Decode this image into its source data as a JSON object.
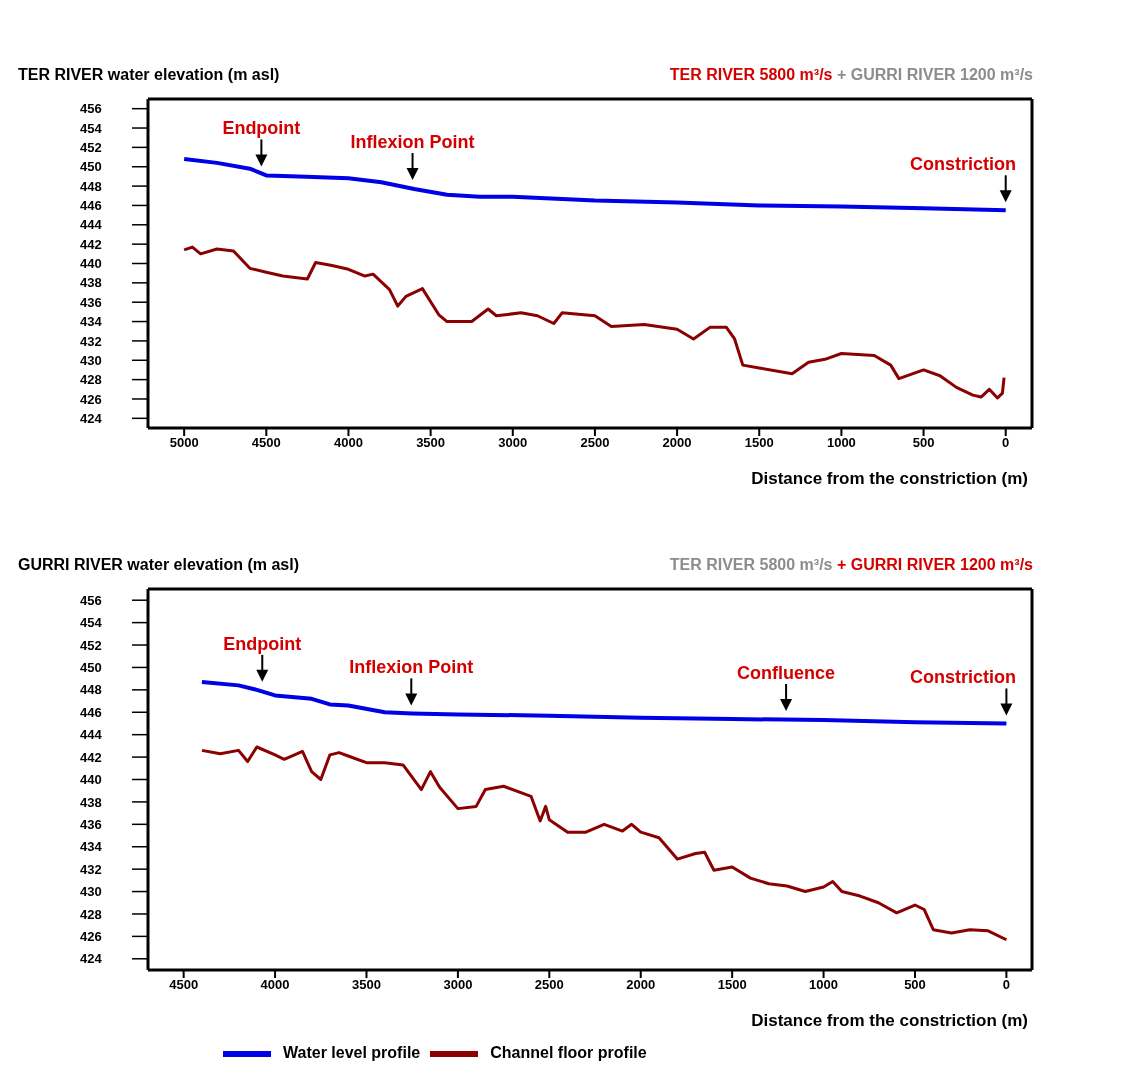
{
  "chart_data": [
    {
      "type": "line",
      "ylabel": "TER RIVER water elevation (m asl)",
      "subtitle": "TER RIVER 5800 m³/s + GURRI RIVER 1200 m³/s",
      "xlabel": "Distance from the constriction (m)",
      "xlim": [
        5220,
        -160
      ],
      "xticks": [
        5000,
        4500,
        4000,
        3500,
        3000,
        2500,
        2000,
        1500,
        1000,
        500,
        0
      ],
      "ylim": [
        423,
        457
      ],
      "yticks": [
        424,
        426,
        428,
        430,
        432,
        434,
        436,
        438,
        440,
        442,
        444,
        446,
        448,
        450,
        452,
        454,
        456
      ],
      "grid": false,
      "legend": false,
      "line_style": "solid",
      "annotations": [
        {
          "text": "Endpoint",
          "x": 4530,
          "y": 449.2
        },
        {
          "text": "Inflexion Point",
          "x": 3610,
          "y": 447.8
        },
        {
          "text": "Constriction",
          "x": 0,
          "y": 445.5
        }
      ],
      "series": [
        {
          "color": "#0000e6",
          "x": [
            5000,
            4800,
            4600,
            4500,
            4300,
            4000,
            3800,
            3600,
            3400,
            3200,
            3000,
            2500,
            2000,
            1500,
            1000,
            500,
            0
          ],
          "values": [
            450.8,
            450.4,
            449.8,
            449.1,
            449.0,
            448.8,
            448.4,
            447.7,
            447.1,
            446.9,
            446.9,
            446.5,
            446.3,
            446.0,
            445.9,
            445.7,
            445.5
          ]
        },
        {
          "color": "#8b0000",
          "x": [
            5000,
            4950,
            4900,
            4800,
            4700,
            4600,
            4500,
            4400,
            4250,
            4200,
            4100,
            4000,
            3900,
            3850,
            3750,
            3700,
            3650,
            3550,
            3450,
            3400,
            3250,
            3150,
            3100,
            2950,
            2850,
            2750,
            2700,
            2500,
            2400,
            2300,
            2200,
            2000,
            1900,
            1800,
            1700,
            1650,
            1600,
            1500,
            1300,
            1200,
            1100,
            1000,
            900,
            800,
            700,
            650,
            500,
            400,
            300,
            200,
            150,
            100,
            50,
            20,
            10
          ],
          "values": [
            441.4,
            441.7,
            441.0,
            441.5,
            441.3,
            439.5,
            439.1,
            438.7,
            438.4,
            440.1,
            439.8,
            439.4,
            438.7,
            438.9,
            437.3,
            435.6,
            436.6,
            437.4,
            434.7,
            434.0,
            434.0,
            435.3,
            434.6,
            434.9,
            434.6,
            433.8,
            434.9,
            434.6,
            433.5,
            433.6,
            433.7,
            433.2,
            432.2,
            433.4,
            433.4,
            432.2,
            429.5,
            429.2,
            428.6,
            429.8,
            430.1,
            430.7,
            430.6,
            430.5,
            429.5,
            428.1,
            429.0,
            428.4,
            427.2,
            426.4,
            426.2,
            427.0,
            426.1,
            426.6,
            428.2
          ]
        }
      ]
    },
    {
      "type": "line",
      "ylabel": "GURRI RIVER water elevation (m asl)",
      "subtitle": "TER RIVER 5800 m³/s + GURRI RIVER 1200 m³/s",
      "xlabel": "Distance from the constriction (m)",
      "xlim": [
        4695,
        -140
      ],
      "xticks": [
        4500,
        4000,
        3500,
        3000,
        2500,
        2000,
        1500,
        1000,
        500,
        0
      ],
      "ylim": [
        423,
        457
      ],
      "yticks": [
        424,
        426,
        428,
        430,
        432,
        434,
        436,
        438,
        440,
        442,
        444,
        446,
        448,
        450,
        452,
        454,
        456
      ],
      "grid": false,
      "legend": "bottom",
      "line_style": "solid",
      "annotations": [
        {
          "text": "Endpoint",
          "x": 4070,
          "y": 448.0
        },
        {
          "text": "Inflexion Point",
          "x": 3255,
          "y": 445.9
        },
        {
          "text": "Confluence",
          "x": 1205,
          "y": 445.4
        },
        {
          "text": "Constriction",
          "x": 0,
          "y": 445.0
        }
      ],
      "series": [
        {
          "name": "Water level profile",
          "color": "#0000e6",
          "x": [
            4400,
            4200,
            4100,
            4000,
            3800,
            3700,
            3600,
            3400,
            3250,
            3000,
            2500,
            2000,
            1500,
            1000,
            500,
            0
          ],
          "values": [
            448.7,
            448.4,
            448.0,
            447.5,
            447.2,
            446.7,
            446.6,
            446.0,
            445.9,
            445.8,
            445.7,
            445.5,
            445.4,
            445.3,
            445.1,
            445.0
          ]
        },
        {
          "name": "Channel floor profile",
          "color": "#8b0000",
          "x": [
            4400,
            4300,
            4200,
            4150,
            4100,
            4000,
            3950,
            3850,
            3800,
            3750,
            3700,
            3650,
            3600,
            3500,
            3400,
            3300,
            3200,
            3150,
            3100,
            3000,
            2900,
            2850,
            2750,
            2600,
            2550,
            2520,
            2500,
            2400,
            2300,
            2200,
            2100,
            2050,
            2000,
            1900,
            1800,
            1700,
            1650,
            1600,
            1500,
            1400,
            1300,
            1200,
            1100,
            1000,
            950,
            900,
            800,
            700,
            600,
            500,
            450,
            400,
            300,
            200,
            100,
            0
          ],
          "values": [
            442.6,
            442.3,
            442.6,
            441.6,
            442.9,
            442.2,
            441.8,
            442.5,
            440.7,
            440.0,
            442.2,
            442.4,
            442.1,
            441.5,
            441.5,
            441.3,
            439.1,
            440.7,
            439.3,
            437.4,
            437.6,
            439.1,
            439.4,
            438.5,
            436.3,
            437.6,
            436.4,
            435.3,
            435.3,
            436.0,
            435.4,
            436.0,
            435.3,
            434.8,
            432.9,
            433.4,
            433.5,
            431.9,
            432.2,
            431.2,
            430.7,
            430.5,
            430.0,
            430.4,
            430.9,
            430.0,
            429.6,
            429.0,
            428.1,
            428.8,
            428.4,
            426.6,
            426.3,
            426.6,
            426.5,
            425.7
          ]
        }
      ]
    }
  ]
}
